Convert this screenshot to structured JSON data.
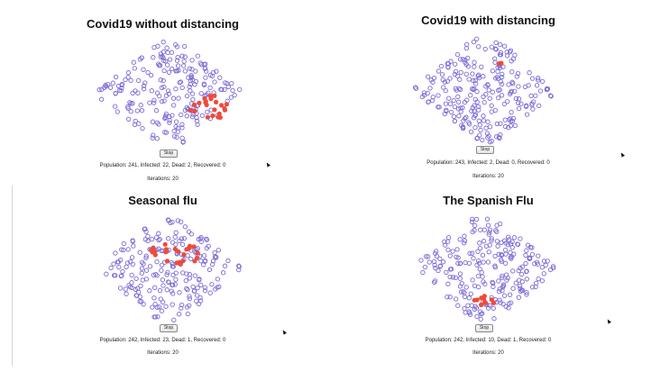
{
  "simulations": [
    {
      "title": "Covid19 without distancing",
      "stop_label": "Stop",
      "stats": "Population: 241, Infected: 22, Dead: 2, Recovered: 0",
      "iterations": "Iterations: 20",
      "population": 241,
      "infected": 22,
      "dead": 2,
      "recovered": 0
    },
    {
      "title": "Covid19 with distancing",
      "stop_label": "Stop",
      "stats": "Population: 243, Infected: 2, Dead: 0, Recovered: 0",
      "iterations": "Iterations: 20",
      "population": 243,
      "infected": 2,
      "dead": 0,
      "recovered": 0
    },
    {
      "title": "Seasonal flu",
      "stop_label": "Stop",
      "stats": "Population: 242, Infected: 23, Dead: 1, Recovered: 0",
      "iterations": "Iterations: 20",
      "population": 242,
      "infected": 23,
      "dead": 1,
      "recovered": 0
    },
    {
      "title": "The Spanish Flu",
      "stop_label": "Stop",
      "stats": "Population: 242, Infected: 10, Dead: 1, Recovered: 0",
      "iterations": "Iterations: 20",
      "population": 242,
      "infected": 10,
      "dead": 1,
      "recovered": 0
    }
  ],
  "colors": {
    "healthy": "#7a6cd6",
    "infected": "#f04a3a",
    "background": "#ffffff"
  }
}
